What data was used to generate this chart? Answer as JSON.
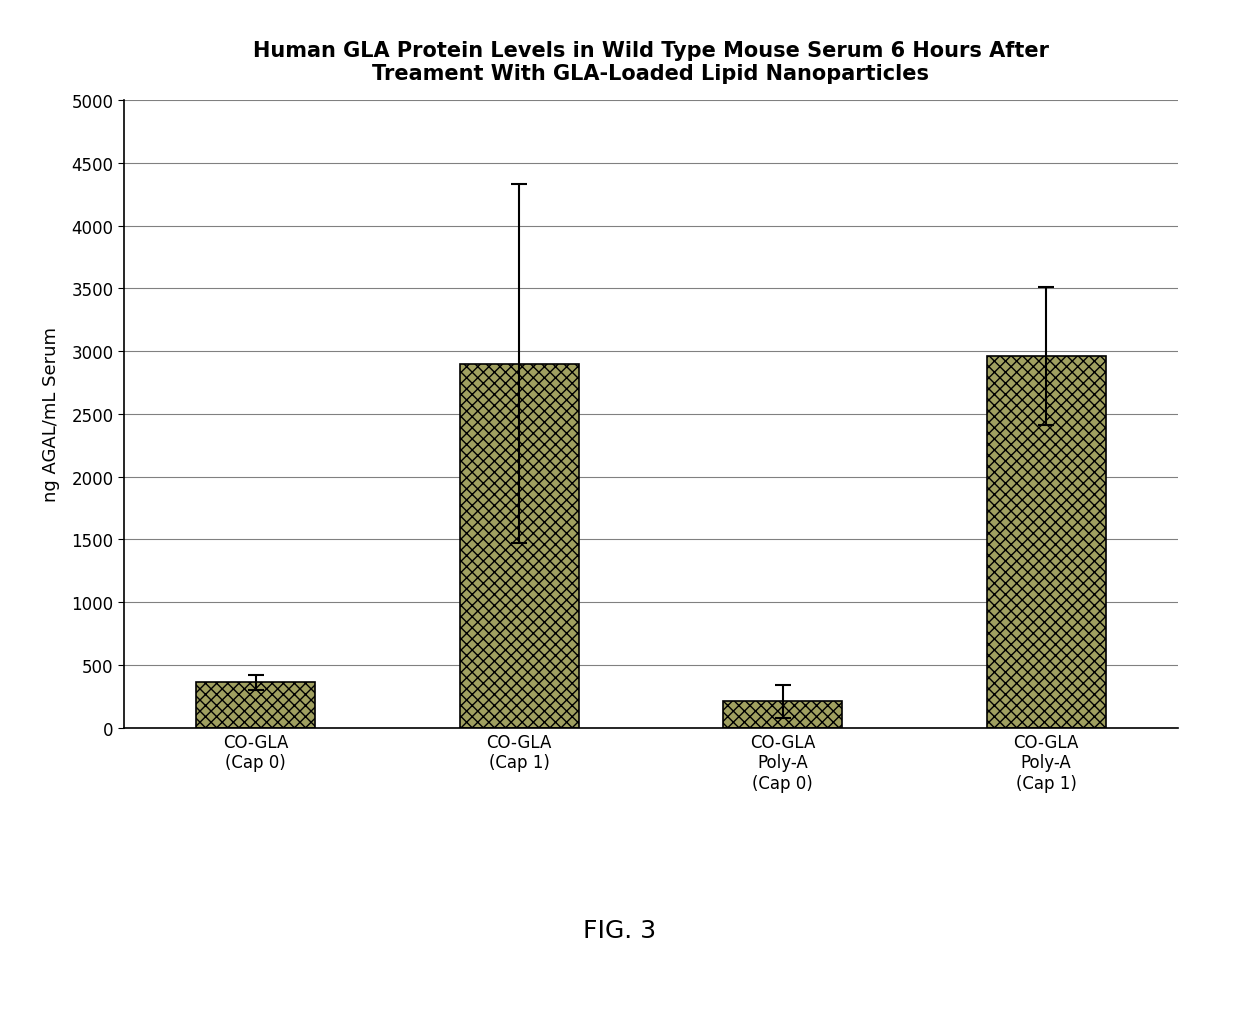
{
  "title": "Human GLA Protein Levels in Wild Type Mouse Serum 6 Hours After\nTreament With GLA-Loaded Lipid Nanoparticles",
  "ylabel": "ng AGAL/mL Serum",
  "categories": [
    "CO-GLA\n(Cap 0)",
    "CO-GLA\n(Cap 1)",
    "CO-GLA\nPoly-A\n(Cap 0)",
    "CO-GLA\nPoly-A\n(Cap 1)"
  ],
  "values": [
    360,
    2900,
    210,
    2960
  ],
  "errors": [
    60,
    1430,
    130,
    550
  ],
  "ylim": [
    0,
    5000
  ],
  "yticks": [
    0,
    500,
    1000,
    1500,
    2000,
    2500,
    3000,
    3500,
    4000,
    4500,
    5000
  ],
  "bar_color": "#a0a060",
  "bar_edgecolor": "#000000",
  "background_color": "#ffffff",
  "fig_facecolor": "#ffffff",
  "title_fontsize": 15,
  "label_fontsize": 13,
  "tick_fontsize": 12,
  "caption": "FIG. 3",
  "caption_fontsize": 18
}
